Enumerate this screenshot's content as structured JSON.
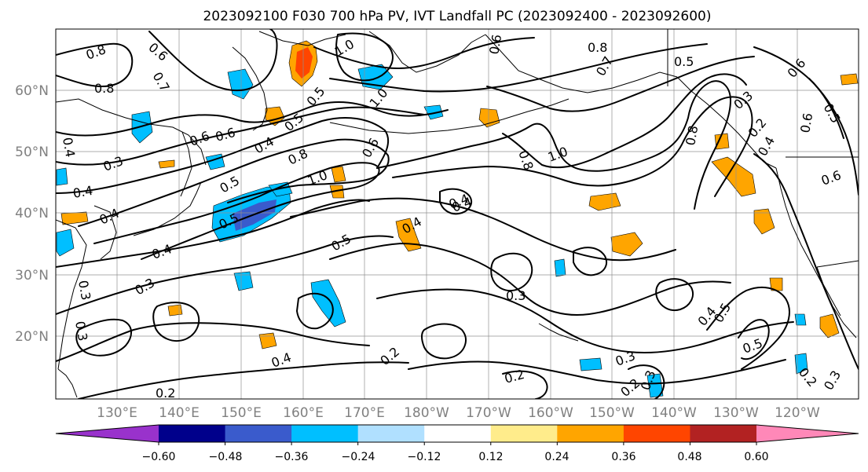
{
  "title": "2023092100 F030 700 hPa PV, IVT Landfall PC (2023092400 - 2023092600)",
  "latitude_labels": [
    "60°N",
    "50°N",
    "40°N",
    "30°N",
    "20°N"
  ],
  "longitude_labels": [
    "130°E",
    "140°E",
    "150°E",
    "160°E",
    "170°E",
    "180°W",
    "170°W",
    "160°W",
    "150°W",
    "140°W",
    "130°W",
    "120°W"
  ],
  "colorbar": {
    "tick_labels": [
      "−0.60",
      "−0.48",
      "−0.36",
      "−0.24",
      "−0.12",
      "0.12",
      "0.24",
      "0.36",
      "0.48",
      "0.60"
    ],
    "colors": [
      "#9932cc",
      "#00008b",
      "#3a5bcc",
      "#00bfff",
      "#b0e0ff",
      "#ffffff",
      "#ffec8b",
      "#ffa500",
      "#ff4500",
      "#b22222",
      "#ff88b8"
    ],
    "extend": "both"
  },
  "contour_labels": [
    "0.8",
    "0.6",
    "0.7",
    "1.0",
    "1.0",
    "0.8",
    "0.5",
    "0.6",
    "0.5",
    "0.4",
    "0.6",
    "0.4",
    "0.3",
    "0.4",
    "0.5",
    "0.8",
    "1.0",
    "0.6",
    "0.5",
    "0.5",
    "0.4",
    "0.3",
    "0.3",
    "0.4",
    "0.3",
    "0.4",
    "0.2",
    "0.3",
    "0.2",
    "0.2",
    "0.3",
    "0.8",
    "1.0",
    "0.8",
    "0.7",
    "0.8",
    "0.4",
    "0.6",
    "0.5",
    "0.6",
    "0.6",
    "0.3",
    "0.2",
    "0.2",
    "0.2",
    "0.5",
    "0.4",
    "0.5",
    "0.4",
    "0.3",
    "0.4",
    "0.6",
    "0.5",
    "0.4",
    "0.3"
  ]
}
